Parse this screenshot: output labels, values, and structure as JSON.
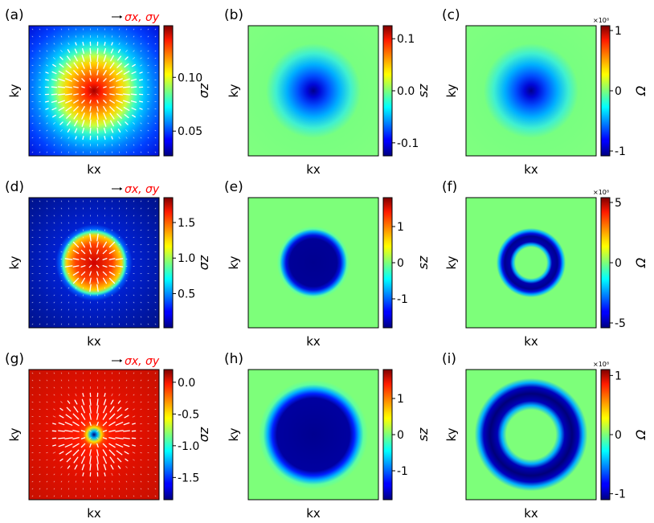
{
  "figure": {
    "layout": "3x3 grid",
    "colormap": "jet",
    "legend_arrow_label": "σx, σy",
    "legend_color": "#ff0000"
  },
  "chart_data": [
    {
      "id": "a",
      "panel_label": "(a)",
      "type": "heatmap",
      "profile": "gaussian_peak",
      "quantity": "σz",
      "xlabel": "kx",
      "ylabel": "ky",
      "colorbar_label": "σz",
      "colorbar_ticks": [
        "0.05",
        "0.10"
      ],
      "colorbar_tick_values": [
        0.05,
        0.1
      ],
      "cbar_range": [
        0.027,
        0.148
      ],
      "cbar_scale": "",
      "has_vectors": true,
      "vector_legend": "σx, σy",
      "vector_pattern": "outward"
    },
    {
      "id": "b",
      "panel_label": "(b)",
      "type": "heatmap",
      "profile": "dip",
      "quantity": "sz",
      "xlabel": "kx",
      "ylabel": "ky",
      "colorbar_label": "sz",
      "colorbar_ticks": [
        "0.1",
        "0.0",
        "-0.1"
      ],
      "colorbar_tick_values": [
        0.1,
        0.0,
        -0.1
      ],
      "cbar_range": [
        -0.125,
        0.125
      ],
      "cbar_scale": "",
      "has_vectors": false
    },
    {
      "id": "c",
      "panel_label": "(c)",
      "type": "heatmap",
      "profile": "dip",
      "quantity": "Ω",
      "xlabel": "kx",
      "ylabel": "ky",
      "colorbar_label": "Ω",
      "colorbar_ticks": [
        "1",
        "0",
        "-1"
      ],
      "colorbar_tick_values": [
        1,
        0,
        -1
      ],
      "cbar_range": [
        -1.08,
        1.08
      ],
      "cbar_scale": "×10⁸",
      "has_vectors": false
    },
    {
      "id": "d",
      "panel_label": "(d)",
      "type": "heatmap",
      "profile": "disk_peak",
      "quantity": "σz",
      "xlabel": "kx",
      "ylabel": "ky",
      "colorbar_label": "σz",
      "colorbar_ticks": [
        "1.5",
        "1.0",
        "0.5"
      ],
      "colorbar_tick_values": [
        1.5,
        1.0,
        0.5
      ],
      "cbar_range": [
        0.02,
        1.85
      ],
      "cbar_scale": "",
      "has_vectors": true,
      "vector_legend": "σx, σy",
      "vector_pattern": "outward"
    },
    {
      "id": "e",
      "panel_label": "(e)",
      "type": "heatmap",
      "profile": "disk_dip",
      "quantity": "sz",
      "xlabel": "kx",
      "ylabel": "ky",
      "colorbar_label": "sz",
      "colorbar_ticks": [
        "1",
        "0",
        "-1"
      ],
      "colorbar_tick_values": [
        1,
        0,
        -1
      ],
      "cbar_range": [
        -1.8,
        1.8
      ],
      "cbar_scale": "",
      "has_vectors": false
    },
    {
      "id": "f",
      "panel_label": "(f)",
      "type": "heatmap",
      "profile": "ring_dip",
      "quantity": "Ω",
      "xlabel": "kx",
      "ylabel": "ky",
      "colorbar_label": "Ω",
      "colorbar_ticks": [
        "5",
        "0",
        "-5"
      ],
      "colorbar_tick_values": [
        5,
        0,
        -5
      ],
      "cbar_range": [
        -5.4,
        5.4
      ],
      "cbar_scale": "×10⁸",
      "has_vectors": false
    },
    {
      "id": "g",
      "panel_label": "(g)",
      "type": "heatmap",
      "profile": "center_dip",
      "quantity": "σz",
      "xlabel": "kx",
      "ylabel": "ky",
      "colorbar_label": "σz",
      "colorbar_ticks": [
        "0.0",
        "-0.5",
        "-1.0",
        "-1.5"
      ],
      "colorbar_tick_values": [
        0.0,
        -0.5,
        -1.0,
        -1.5
      ],
      "cbar_range": [
        -1.85,
        0.2
      ],
      "cbar_scale": "",
      "has_vectors": true,
      "vector_legend": "σx, σy",
      "vector_pattern": "inward"
    },
    {
      "id": "h",
      "panel_label": "(h)",
      "type": "heatmap",
      "profile": "big_disk_dip",
      "quantity": "sz",
      "xlabel": "kx",
      "ylabel": "ky",
      "colorbar_label": "sz",
      "colorbar_ticks": [
        "1",
        "0",
        "-1"
      ],
      "colorbar_tick_values": [
        1,
        0,
        -1
      ],
      "cbar_range": [
        -1.8,
        1.8
      ],
      "cbar_scale": "",
      "has_vectors": false
    },
    {
      "id": "i",
      "panel_label": "(i)",
      "type": "heatmap",
      "profile": "big_ring_dip",
      "quantity": "Ω",
      "xlabel": "kx",
      "ylabel": "ky",
      "colorbar_label": "Ω",
      "colorbar_ticks": [
        "1",
        "0",
        "-1"
      ],
      "colorbar_tick_values": [
        1,
        0,
        -1
      ],
      "cbar_range": [
        -1.1,
        1.1
      ],
      "cbar_scale": "×10⁸",
      "has_vectors": false
    }
  ]
}
